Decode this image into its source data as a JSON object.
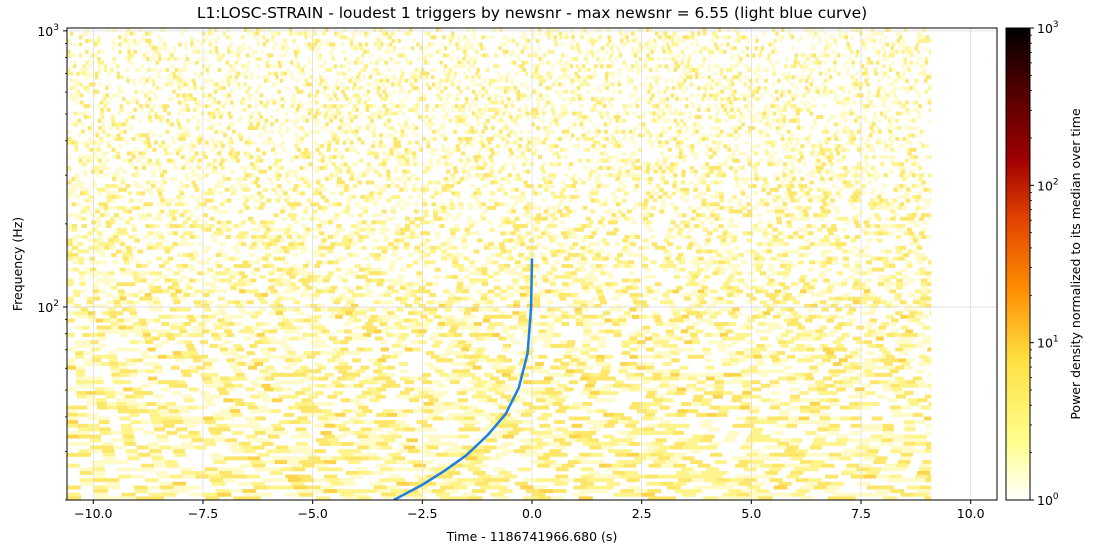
{
  "chart_data": {
    "type": "heatmap",
    "title": "L1:LOSC-STRAIN - loudest 1 triggers by newsnr - max newsnr = 6.55 (light blue curve)",
    "xlabel": "Time - 1186741966.680 (s)",
    "ylabel": "Frequency (Hz)",
    "colorbar_label": "Power density normalized to its median over time",
    "xlim": [
      -10.6,
      10.6
    ],
    "ylim": [
      20,
      1024
    ],
    "yscale": "log",
    "x_ticks": [
      -10.0,
      -7.5,
      -5.0,
      -2.5,
      0.0,
      2.5,
      5.0,
      7.5,
      10.0
    ],
    "x_tick_labels": [
      "−10.0",
      "−7.5",
      "−5.0",
      "−2.5",
      "0.0",
      "2.5",
      "5.0",
      "7.5",
      "10.0"
    ],
    "y_ticks": [
      {
        "value": 100,
        "base": "10",
        "exp": "2"
      },
      {
        "value": 1000,
        "base": "10",
        "exp": "3"
      }
    ],
    "spectrogram_time_range": [
      -10.6,
      9.1
    ],
    "colorbar": {
      "scale": "log",
      "range": [
        1,
        1000
      ],
      "ticks": [
        {
          "value": 1,
          "base": "10",
          "exp": "0"
        },
        {
          "value": 10,
          "base": "10",
          "exp": "1"
        },
        {
          "value": 100,
          "base": "10",
          "exp": "2"
        },
        {
          "value": 1000,
          "base": "10",
          "exp": "3"
        }
      ],
      "colormap": "afmhot_r"
    },
    "grid": true,
    "trigger_curve": {
      "color": "#1a80e6",
      "x": [
        -3.15,
        -2.5,
        -2.0,
        -1.5,
        -1.0,
        -0.6,
        -0.3,
        -0.1,
        -0.02,
        0.0
      ],
      "y": [
        20,
        22.7,
        25.5,
        29.0,
        34.5,
        41.0,
        51.0,
        68.0,
        100.0,
        150.0
      ]
    }
  }
}
